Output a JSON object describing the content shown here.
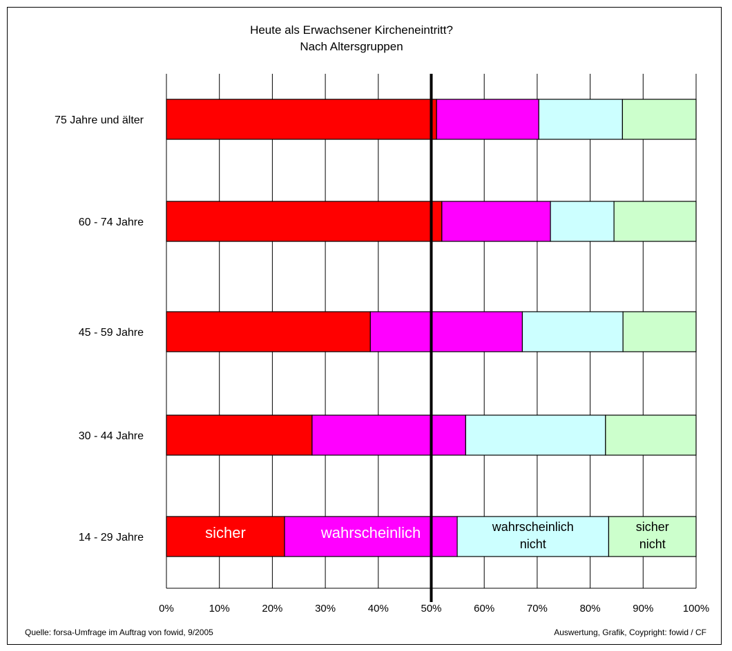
{
  "chart_data": {
    "type": "bar",
    "stacked": true,
    "orientation": "horizontal",
    "title": [
      "Heute als Erwachsener Kircheneintritt?",
      "Nach Altersgruppen"
    ],
    "categories": [
      "75 Jahre und älter",
      "60 - 74 Jahre",
      "45 - 59 Jahre",
      "30 - 44 Jahre",
      "14 - 29 Jahre"
    ],
    "series": [
      {
        "name": "sicher",
        "color": "#ff0000",
        "values": [
          51,
          52,
          38.5,
          27.5,
          22.3
        ]
      },
      {
        "name": "wahrscheinlich",
        "color": "#ff00ff",
        "values": [
          19.3,
          20.5,
          28.7,
          29,
          32.6
        ]
      },
      {
        "name": "wahrscheinlich nicht",
        "color": "#ccffff",
        "values": [
          15.8,
          12,
          19,
          26.4,
          28.6
        ]
      },
      {
        "name": "sicher nicht",
        "color": "#ccffcc",
        "values": [
          13.9,
          15.5,
          13.8,
          17.1,
          16.5
        ]
      }
    ],
    "segment_labels": [
      {
        "lines": [
          "sicher"
        ],
        "color": "#ffffff"
      },
      {
        "lines": [
          "wahrscheinlich"
        ],
        "color": "#ffffff"
      },
      {
        "lines": [
          "wahrscheinlich",
          "nicht"
        ],
        "color": "#000000"
      },
      {
        "lines": [
          "sicher",
          "nicht"
        ],
        "color": "#000000"
      }
    ],
    "xlim": [
      0,
      100
    ],
    "x_ticks": [
      "0%",
      "10%",
      "20%",
      "30%",
      "40%",
      "50%",
      "60%",
      "70%",
      "80%",
      "90%",
      "100%"
    ],
    "reference_line": 50,
    "grid": true
  },
  "footer": {
    "source": "Quelle: forsa-Umfrage im Auftrag von fowid, 9/2005",
    "credit": "Auswertung, Grafik, Coypright: fowid / CF"
  }
}
